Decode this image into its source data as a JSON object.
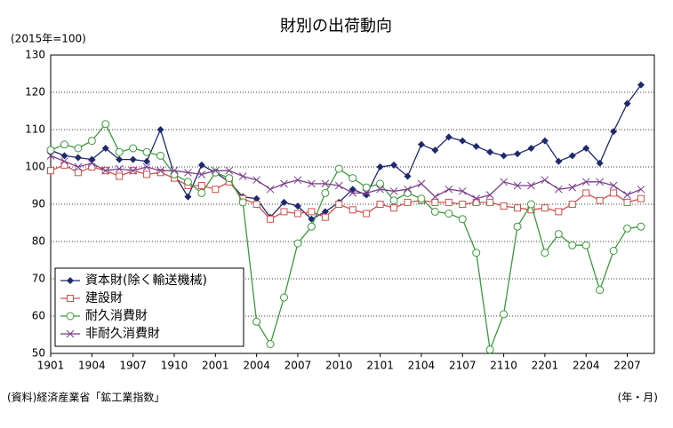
{
  "chart_data": {
    "type": "line",
    "title": "財別の出荷動向",
    "subtitle": "(2015年=100)",
    "source": "(資料)経済産業省「鉱工業指数」",
    "x_label": "(年・月)",
    "categories": [
      "1901",
      null,
      null,
      "1904",
      null,
      null,
      "1907",
      null,
      null,
      "1910",
      null,
      null,
      "2001",
      null,
      null,
      "2004",
      null,
      null,
      "2007",
      null,
      null,
      "2010",
      null,
      null,
      "2101",
      null,
      null,
      "2104",
      null,
      null,
      "2107",
      null,
      null,
      "2110",
      null,
      null,
      "2201",
      null,
      null,
      "2204",
      null,
      null,
      "2207",
      null
    ],
    "ylim": [
      50,
      130
    ],
    "yticks": [
      50,
      60,
      70,
      80,
      90,
      100,
      110,
      120,
      130
    ],
    "grid": true,
    "legend": "lower left",
    "series": [
      {
        "name": "資本財(除く輸送機械)",
        "color": "#1f2a6e",
        "marker": "diamond",
        "values": [
          104.5,
          103,
          102.5,
          102,
          105,
          102,
          102,
          101.5,
          110,
          98,
          92,
          100.5,
          98.5,
          96,
          92,
          91.5,
          86.5,
          90.5,
          89.5,
          86,
          88,
          90.5,
          94,
          92.5,
          100,
          100.5,
          97.5,
          106,
          104.5,
          108,
          107,
          105.5,
          104,
          103,
          103.5,
          105,
          107,
          101.5,
          103,
          105,
          101,
          109.5,
          117,
          122
        ]
      },
      {
        "name": "建設財",
        "color": "#d0504d",
        "marker": "square",
        "values": [
          99,
          100.5,
          98.5,
          100,
          99,
          97.5,
          99,
          98,
          98.5,
          97,
          95,
          95,
          94,
          96,
          91.5,
          90,
          86,
          88,
          87.5,
          88,
          86.5,
          90,
          88.5,
          87.5,
          90,
          89,
          90.5,
          91,
          90.5,
          90.5,
          90,
          90.5,
          90.5,
          89.5,
          89,
          88.5,
          89,
          88,
          90,
          93,
          91,
          93,
          90.5,
          91.5
        ]
      },
      {
        "name": "耐久消費財",
        "color": "#3a9a3a",
        "marker": "circle",
        "values": [
          104.5,
          106,
          105,
          107,
          111.5,
          104,
          105,
          104,
          103,
          98,
          96,
          93,
          98.5,
          97,
          90.5,
          58.5,
          52.5,
          65,
          79.5,
          84,
          93,
          99.5,
          97,
          94.5,
          95.5,
          91,
          93,
          91.5,
          88,
          87.5,
          86,
          77,
          51,
          60.5,
          84,
          90,
          77,
          82,
          79,
          79,
          67,
          77.5,
          83.5,
          84
        ]
      },
      {
        "name": "非耐久消費財",
        "color": "#7b3f8c",
        "marker": "x",
        "values": [
          103,
          101.5,
          100,
          101,
          99,
          99.5,
          99,
          100,
          99,
          99,
          98.5,
          98,
          99,
          99,
          97.5,
          96.5,
          94,
          95.5,
          96.5,
          95.5,
          95.5,
          95,
          93,
          93,
          94,
          93.5,
          94,
          95.5,
          92,
          94,
          93.5,
          91.5,
          92.5,
          96,
          95,
          95,
          96.5,
          94,
          94.5,
          96,
          96,
          95,
          92.5,
          94
        ]
      }
    ]
  }
}
